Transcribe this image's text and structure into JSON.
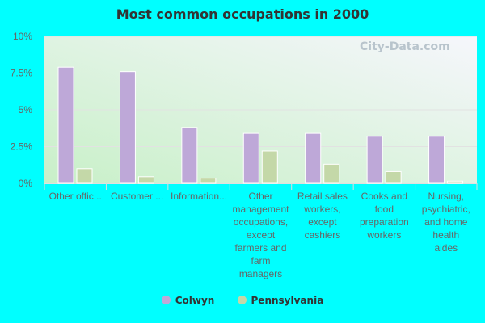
{
  "chart_data": {
    "type": "bar",
    "title": "Most common occupations in 2000",
    "categories": [
      [
        "Other offic..."
      ],
      [
        "Customer ..."
      ],
      [
        "Information..."
      ],
      [
        "Other",
        "management",
        "occupations,",
        "except",
        "farmers and",
        "farm",
        "managers"
      ],
      [
        "Retail sales",
        "workers,",
        "except",
        "cashiers"
      ],
      [
        "Cooks and",
        "food",
        "preparation",
        "workers"
      ],
      [
        "Nursing,",
        "psychiatric,",
        "and home",
        "health",
        "aides"
      ]
    ],
    "series": [
      {
        "name": "Colwyn",
        "color": "#bea8d8",
        "values": [
          7.9,
          7.6,
          3.8,
          3.4,
          3.4,
          3.2,
          3.2
        ]
      },
      {
        "name": "Pennsylvania",
        "color": "#c4d8a8",
        "values": [
          1.0,
          0.45,
          0.35,
          2.2,
          1.3,
          0.8,
          0.15
        ]
      }
    ],
    "ylim": [
      0,
      10
    ],
    "yticks": [
      "0%",
      "2.5%",
      "5%",
      "7.5%",
      "10%"
    ],
    "grid": true,
    "legend": "bottom"
  },
  "watermark": "City-Data.com"
}
